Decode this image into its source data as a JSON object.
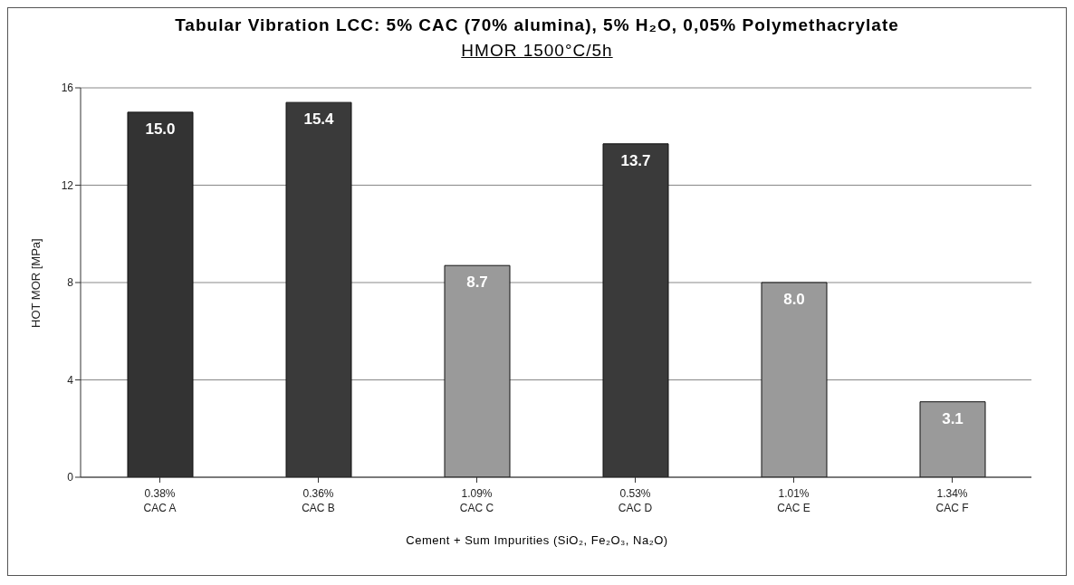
{
  "chart_data": {
    "type": "bar",
    "title": "Tabular Vibration LCC: 5% CAC (70% alumina), 5% H₂O, 0,05% Polymethacrylate",
    "subtitle": "HMOR 1500°C/5h",
    "xlabel": "Cement + Sum Impurities (SiO₂, Fe₂O₃, Na₂O)",
    "ylabel": "HOT MOR [MPa]",
    "categories": [
      "0.38%\nCAC A",
      "0.36%\nCAC B",
      "1.09%\nCAC C",
      "0.53%\nCAC D",
      "1.01%\nCAC E",
      "1.34%\nCAC F"
    ],
    "values": [
      15.0,
      15.4,
      8.7,
      13.7,
      8.0,
      3.1
    ],
    "colors": [
      "#333333",
      "#3a3a3a",
      "#9a9a9a",
      "#3a3a3a",
      "#9a9a9a",
      "#9a9a9a"
    ],
    "ylim": [
      0,
      16
    ],
    "yticks": [
      0,
      4,
      8,
      12,
      16
    ],
    "value_labels": [
      "15.0",
      "15.4",
      "8.7",
      "13.7",
      "8.0",
      "3.1"
    ],
    "grid": "y",
    "legend": false
  }
}
